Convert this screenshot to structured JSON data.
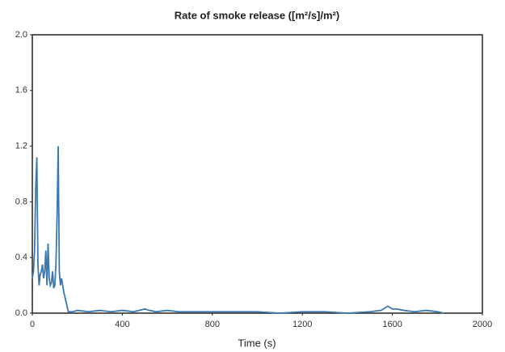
{
  "chart_data": {
    "type": "line",
    "title": "Rate of smoke release ([m²/s]/m²)",
    "x_label": "Time (s)",
    "xlim": [
      0,
      2000
    ],
    "xticks": [
      0,
      400,
      800,
      1200,
      1600,
      2000
    ],
    "ylim": [
      0,
      2.0
    ],
    "yticks": [
      {
        "value": 0,
        "label": "0.0"
      },
      {
        "value": 0.4,
        "label": "0.4"
      },
      {
        "value": 0.8,
        "label": "0.8"
      },
      {
        "value": 1.2,
        "label": "1.2"
      },
      {
        "value": 1.6,
        "label": "1.6"
      },
      {
        "value": 2.0,
        "label": "2.0"
      }
    ],
    "grid": false,
    "series": [
      {
        "color": "#3b78ae",
        "x": [
          0,
          5,
          10,
          15,
          20,
          25,
          30,
          35,
          40,
          45,
          50,
          55,
          60,
          65,
          70,
          75,
          80,
          85,
          90,
          95,
          100,
          105,
          110,
          115,
          120,
          125,
          130,
          140,
          150,
          160,
          170,
          180,
          200,
          250,
          300,
          350,
          400,
          450,
          500,
          520,
          550,
          600,
          650,
          700,
          800,
          900,
          1000,
          1100,
          1200,
          1300,
          1400,
          1500,
          1550,
          1580,
          1600,
          1620,
          1650,
          1700,
          1750,
          1800,
          1830
        ],
        "values": [
          0.25,
          0.3,
          0.45,
          0.9,
          1.12,
          0.35,
          0.2,
          0.28,
          0.3,
          0.35,
          0.25,
          0.3,
          0.45,
          0.2,
          0.5,
          0.25,
          0.2,
          0.22,
          0.3,
          0.18,
          0.2,
          0.35,
          0.7,
          1.2,
          0.3,
          0.2,
          0.25,
          0.15,
          0.08,
          0.01,
          0.01,
          0.01,
          0.02,
          0.01,
          0.02,
          0.01,
          0.02,
          0.01,
          0.03,
          0.02,
          0.01,
          0.02,
          0.01,
          0.01,
          0.01,
          0.01,
          0.01,
          0.0,
          0.01,
          0.01,
          0.0,
          0.01,
          0.02,
          0.05,
          0.03,
          0.03,
          0.02,
          0.01,
          0.02,
          0.01,
          0.0
        ]
      }
    ]
  }
}
